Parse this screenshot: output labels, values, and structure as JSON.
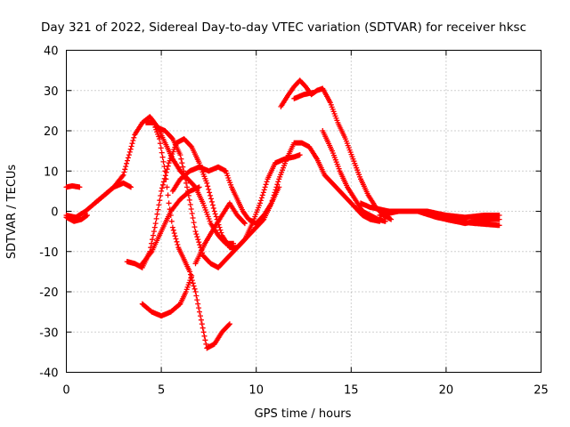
{
  "chart_data": {
    "type": "scatter",
    "title": "Day 321 of 2022, Sidereal Day-to-day VTEC variation (SDTVAR) for receiver hksc",
    "xlabel": "GPS time / hours",
    "ylabel": "SDTVAR / TECUs",
    "xlim": [
      0,
      25
    ],
    "ylim": [
      -40,
      40
    ],
    "xticks": [
      0,
      5,
      10,
      15,
      20,
      25
    ],
    "yticks": [
      -40,
      -30,
      -20,
      -10,
      0,
      10,
      20,
      30,
      40
    ],
    "grid": true,
    "marker": "+",
    "color": "#ff0000",
    "series": [
      {
        "name": "trace-1",
        "points": [
          [
            0.0,
            -1
          ],
          [
            0.5,
            -1.5
          ],
          [
            1.0,
            0
          ],
          [
            1.5,
            2
          ],
          [
            2.0,
            4
          ],
          [
            2.5,
            6
          ],
          [
            3.0,
            9
          ],
          [
            3.3,
            14
          ],
          [
            3.6,
            19
          ],
          [
            4.0,
            22
          ],
          [
            4.4,
            23.5
          ],
          [
            4.8,
            21
          ],
          [
            5.2,
            17
          ],
          [
            5.6,
            13
          ],
          [
            6.0,
            10
          ],
          [
            6.4,
            8
          ],
          [
            6.8,
            6
          ],
          [
            7.2,
            2
          ],
          [
            7.6,
            -3
          ],
          [
            8.0,
            -6
          ],
          [
            8.4,
            -8
          ],
          [
            8.8,
            -8
          ]
        ]
      },
      {
        "name": "trace-2",
        "points": [
          [
            0.0,
            6
          ],
          [
            0.3,
            6.3
          ],
          [
            0.7,
            6
          ]
        ]
      },
      {
        "name": "trace-3",
        "points": [
          [
            0.0,
            -1.5
          ],
          [
            0.4,
            -2.5
          ],
          [
            0.8,
            -2
          ],
          [
            1.1,
            -1
          ]
        ]
      },
      {
        "name": "trace-4",
        "points": [
          [
            1.5,
            2
          ],
          [
            2.0,
            4
          ],
          [
            2.5,
            6
          ],
          [
            3.0,
            7
          ],
          [
            3.4,
            6
          ]
        ]
      },
      {
        "name": "trace-5",
        "points": [
          [
            3.2,
            -12.5
          ],
          [
            3.6,
            -13
          ],
          [
            4.0,
            -14
          ],
          [
            4.4,
            -10
          ],
          [
            4.7,
            -3
          ],
          [
            5.0,
            5
          ],
          [
            5.4,
            12
          ],
          [
            5.8,
            17
          ],
          [
            6.2,
            18
          ],
          [
            6.6,
            16
          ],
          [
            7.0,
            12
          ],
          [
            7.4,
            7
          ],
          [
            7.8,
            0
          ],
          [
            8.2,
            -6
          ],
          [
            8.6,
            -9
          ],
          [
            9.0,
            -9
          ],
          [
            9.4,
            -7
          ],
          [
            9.8,
            -3
          ],
          [
            10.2,
            2
          ],
          [
            10.6,
            8
          ],
          [
            11.0,
            12
          ],
          [
            11.5,
            13
          ],
          [
            12.0,
            13.5
          ],
          [
            12.3,
            14
          ]
        ]
      },
      {
        "name": "trace-6",
        "points": [
          [
            4.0,
            -13
          ],
          [
            4.5,
            -10
          ],
          [
            5.0,
            -5
          ],
          [
            5.5,
            0
          ],
          [
            6.0,
            3
          ],
          [
            6.5,
            5
          ],
          [
            7.0,
            6
          ]
        ]
      },
      {
        "name": "trace-7",
        "points": [
          [
            4.2,
            22
          ],
          [
            4.6,
            22
          ],
          [
            4.9,
            18
          ],
          [
            5.2,
            10
          ],
          [
            5.4,
            2
          ],
          [
            5.6,
            -4
          ],
          [
            5.9,
            -9
          ],
          [
            6.2,
            -12
          ],
          [
            6.5,
            -15
          ],
          [
            6.8,
            -20
          ],
          [
            7.1,
            -27
          ],
          [
            7.4,
            -34
          ],
          [
            7.8,
            -33
          ],
          [
            8.2,
            -30
          ],
          [
            8.6,
            -28
          ]
        ]
      },
      {
        "name": "trace-8",
        "points": [
          [
            4.0,
            -23
          ],
          [
            4.5,
            -25
          ],
          [
            5.0,
            -26
          ],
          [
            5.5,
            -25
          ],
          [
            6.0,
            -23
          ],
          [
            6.3,
            -20
          ],
          [
            6.6,
            -16
          ]
        ]
      },
      {
        "name": "trace-9",
        "points": [
          [
            4.7,
            21
          ],
          [
            5.2,
            20
          ],
          [
            5.6,
            18
          ],
          [
            6.0,
            14
          ],
          [
            6.4,
            5
          ],
          [
            6.8,
            -5
          ],
          [
            7.2,
            -11
          ],
          [
            7.6,
            -13
          ],
          [
            8.0,
            -14
          ],
          [
            8.4,
            -12
          ],
          [
            8.8,
            -10
          ],
          [
            9.2,
            -8
          ],
          [
            9.6,
            -6
          ],
          [
            10.0,
            -4
          ],
          [
            10.4,
            -2
          ],
          [
            10.8,
            2
          ],
          [
            11.2,
            8
          ],
          [
            11.6,
            13
          ],
          [
            12.0,
            17
          ],
          [
            12.4,
            17
          ],
          [
            12.8,
            16
          ],
          [
            13.2,
            13
          ],
          [
            13.6,
            9
          ],
          [
            14.0,
            7
          ],
          [
            14.4,
            5
          ],
          [
            14.8,
            3
          ],
          [
            15.2,
            1
          ],
          [
            15.6,
            -1
          ],
          [
            16.0,
            -2
          ],
          [
            16.5,
            -2.5
          ]
        ]
      },
      {
        "name": "trace-10",
        "points": [
          [
            5.6,
            5
          ],
          [
            6.0,
            8
          ],
          [
            6.5,
            10
          ],
          [
            7.0,
            11
          ],
          [
            7.5,
            10
          ],
          [
            8.0,
            11
          ],
          [
            8.4,
            10
          ],
          [
            8.7,
            6
          ],
          [
            9.0,
            3
          ],
          [
            9.3,
            0
          ],
          [
            9.6,
            -2
          ],
          [
            10.0,
            -3
          ],
          [
            10.4,
            -1
          ],
          [
            10.8,
            2
          ],
          [
            11.2,
            6
          ]
        ]
      },
      {
        "name": "trace-11",
        "points": [
          [
            6.8,
            -13
          ],
          [
            7.3,
            -8
          ],
          [
            7.8,
            -4
          ],
          [
            8.2,
            -1
          ],
          [
            8.6,
            2
          ],
          [
            9.0,
            -1
          ],
          [
            9.4,
            -3
          ]
        ]
      },
      {
        "name": "trace-12",
        "points": [
          [
            11.3,
            26
          ],
          [
            11.7,
            29
          ],
          [
            12.0,
            31
          ],
          [
            12.3,
            32.5
          ],
          [
            12.6,
            31
          ],
          [
            12.9,
            29
          ],
          [
            13.2,
            30
          ],
          [
            13.5,
            30.5
          ],
          [
            13.9,
            27
          ],
          [
            14.3,
            22
          ],
          [
            14.7,
            18
          ],
          [
            15.1,
            13
          ],
          [
            15.5,
            8
          ],
          [
            15.9,
            4
          ],
          [
            16.3,
            1
          ],
          [
            16.7,
            -1
          ],
          [
            17.1,
            -2
          ]
        ]
      },
      {
        "name": "trace-13",
        "points": [
          [
            12.0,
            28
          ],
          [
            12.5,
            29
          ],
          [
            13.0,
            29.5
          ]
        ]
      },
      {
        "name": "trace-14",
        "points": [
          [
            13.5,
            20
          ],
          [
            14.0,
            15
          ],
          [
            14.4,
            10
          ],
          [
            14.8,
            6
          ],
          [
            15.2,
            3
          ],
          [
            15.6,
            0
          ],
          [
            16.0,
            -1
          ],
          [
            16.4,
            -2
          ],
          [
            16.8,
            -2.5
          ]
        ]
      },
      {
        "name": "trace-15",
        "points": [
          [
            15.5,
            2
          ],
          [
            16.0,
            1
          ],
          [
            17.0,
            0
          ],
          [
            18.0,
            0
          ],
          [
            19.0,
            0
          ],
          [
            20.0,
            -1
          ],
          [
            21.0,
            -1.5
          ],
          [
            22.0,
            -1
          ],
          [
            22.8,
            -1
          ]
        ]
      },
      {
        "name": "trace-16",
        "points": [
          [
            16.5,
            -1
          ],
          [
            17.5,
            0
          ],
          [
            18.5,
            0
          ],
          [
            19.5,
            -1.5
          ],
          [
            20.5,
            -2.5
          ],
          [
            21.5,
            -3
          ],
          [
            22.8,
            -3.5
          ]
        ]
      },
      {
        "name": "trace-17",
        "points": [
          [
            19.0,
            0
          ],
          [
            20.0,
            -2
          ],
          [
            21.0,
            -3
          ],
          [
            22.0,
            -2
          ],
          [
            22.8,
            -2
          ]
        ]
      }
    ]
  }
}
